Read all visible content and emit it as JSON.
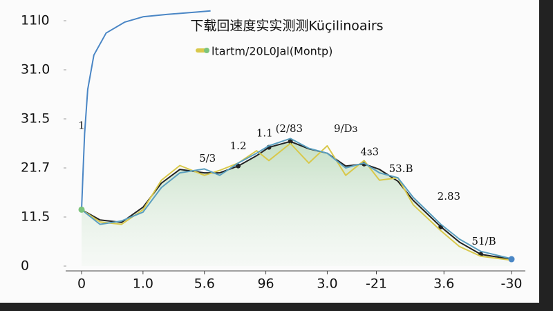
{
  "chart_data": {
    "type": "line",
    "title": "下载回速度实实测测Küçilinoairs",
    "xlim": [
      0,
      7.05
    ],
    "xticks": [
      {
        "value": 0,
        "label": "0"
      },
      {
        "value": 1,
        "label": "1.0"
      },
      {
        "value": 2,
        "label": "5.6"
      },
      {
        "value": 3,
        "label": "96"
      },
      {
        "value": 4,
        "label": "3.0"
      },
      {
        "value": 4.8,
        "label": "-21"
      },
      {
        "value": 5.9,
        "label": "3.6"
      },
      {
        "value": 7,
        "label": "-30"
      }
    ],
    "ylim": [
      0,
      5.25
    ],
    "yticks": [
      {
        "value": 0,
        "label": "0"
      },
      {
        "value": 1,
        "label": "11.5"
      },
      {
        "value": 2,
        "label": "21.7"
      },
      {
        "value": 3,
        "label": "31.5"
      },
      {
        "value": 4,
        "label": "31.0"
      },
      {
        "value": 5,
        "label": "11l0"
      }
    ],
    "series": [
      {
        "color": "#4a86c5",
        "x": [
          0,
          0.02,
          0.05,
          0.1,
          0.2,
          0.4,
          0.7,
          1.0,
          1.4,
          1.9,
          2.1
        ],
        "values": [
          1.15,
          1.8,
          2.7,
          3.6,
          4.3,
          4.75,
          4.97,
          5.08,
          5.13,
          5.18,
          5.2
        ]
      },
      {
        "name": "ltartm/20L0Jal(Montp)",
        "color": "#d8c84a",
        "x": [
          0,
          0.3,
          0.65,
          1,
          1.3,
          1.6,
          2,
          2.25,
          2.55,
          2.85,
          3.05,
          3.4,
          3.7,
          4,
          4.3,
          4.6,
          4.85,
          5.15,
          5.4,
          5.85,
          6.15,
          6.5,
          7
        ],
        "values": [
          1.15,
          0.9,
          0.85,
          1.15,
          1.75,
          2.05,
          1.85,
          1.95,
          2.1,
          2.35,
          2.15,
          2.5,
          2.1,
          2.45,
          1.85,
          2.15,
          1.75,
          1.8,
          1.25,
          0.72,
          0.4,
          0.2,
          0.12
        ]
      },
      {
        "color": "#5a9fbf",
        "x": [
          0,
          0.3,
          0.65,
          1,
          1.3,
          1.6,
          2,
          2.25,
          2.55,
          2.85,
          3.05,
          3.4,
          3.7,
          4,
          4.3,
          4.6,
          4.85,
          5.15,
          5.4,
          5.85,
          6.15,
          6.5,
          7
        ],
        "values": [
          1.15,
          0.85,
          0.92,
          1.1,
          1.6,
          1.9,
          1.98,
          1.85,
          2.1,
          2.3,
          2.45,
          2.6,
          2.4,
          2.3,
          2.0,
          2.1,
          1.9,
          1.8,
          1.4,
          0.85,
          0.55,
          0.3,
          0.15
        ]
      },
      {
        "color": "#222222",
        "fill": "#bfdcbf",
        "markers": [
          8,
          10,
          11,
          15,
          19,
          21
        ],
        "x": [
          0,
          0.3,
          0.65,
          1,
          1.3,
          1.6,
          2,
          2.25,
          2.55,
          2.85,
          3.05,
          3.4,
          3.7,
          4,
          4.3,
          4.6,
          4.85,
          5.15,
          5.4,
          5.85,
          6.15,
          6.5,
          7
        ],
        "values": [
          1.15,
          0.94,
          0.89,
          1.2,
          1.69,
          1.97,
          1.9,
          1.9,
          2.04,
          2.25,
          2.42,
          2.54,
          2.39,
          2.3,
          2.04,
          2.08,
          1.97,
          1.73,
          1.34,
          0.8,
          0.49,
          0.24,
          0.14
        ]
      }
    ],
    "annotations": [
      {
        "text": "1",
        "x": 0,
        "y": 2.85
      },
      {
        "text": "5/3",
        "x": 2.05,
        "y": 2.18
      },
      {
        "text": "1.2",
        "x": 2.55,
        "y": 2.44
      },
      {
        "text": "1.1",
        "x": 2.98,
        "y": 2.7
      },
      {
        "text": "(2/83",
        "x": 3.38,
        "y": 2.79
      },
      {
        "text": "9/Dɜ",
        "x": 4.3,
        "y": 2.79
      },
      {
        "text": "4ɜ3",
        "x": 4.69,
        "y": 2.32
      },
      {
        "text": "53.B",
        "x": 5.2,
        "y": 1.97
      },
      {
        "text": "2.83",
        "x": 5.98,
        "y": 1.41
      },
      {
        "text": "51/B",
        "x": 6.55,
        "y": 0.49
      }
    ]
  }
}
